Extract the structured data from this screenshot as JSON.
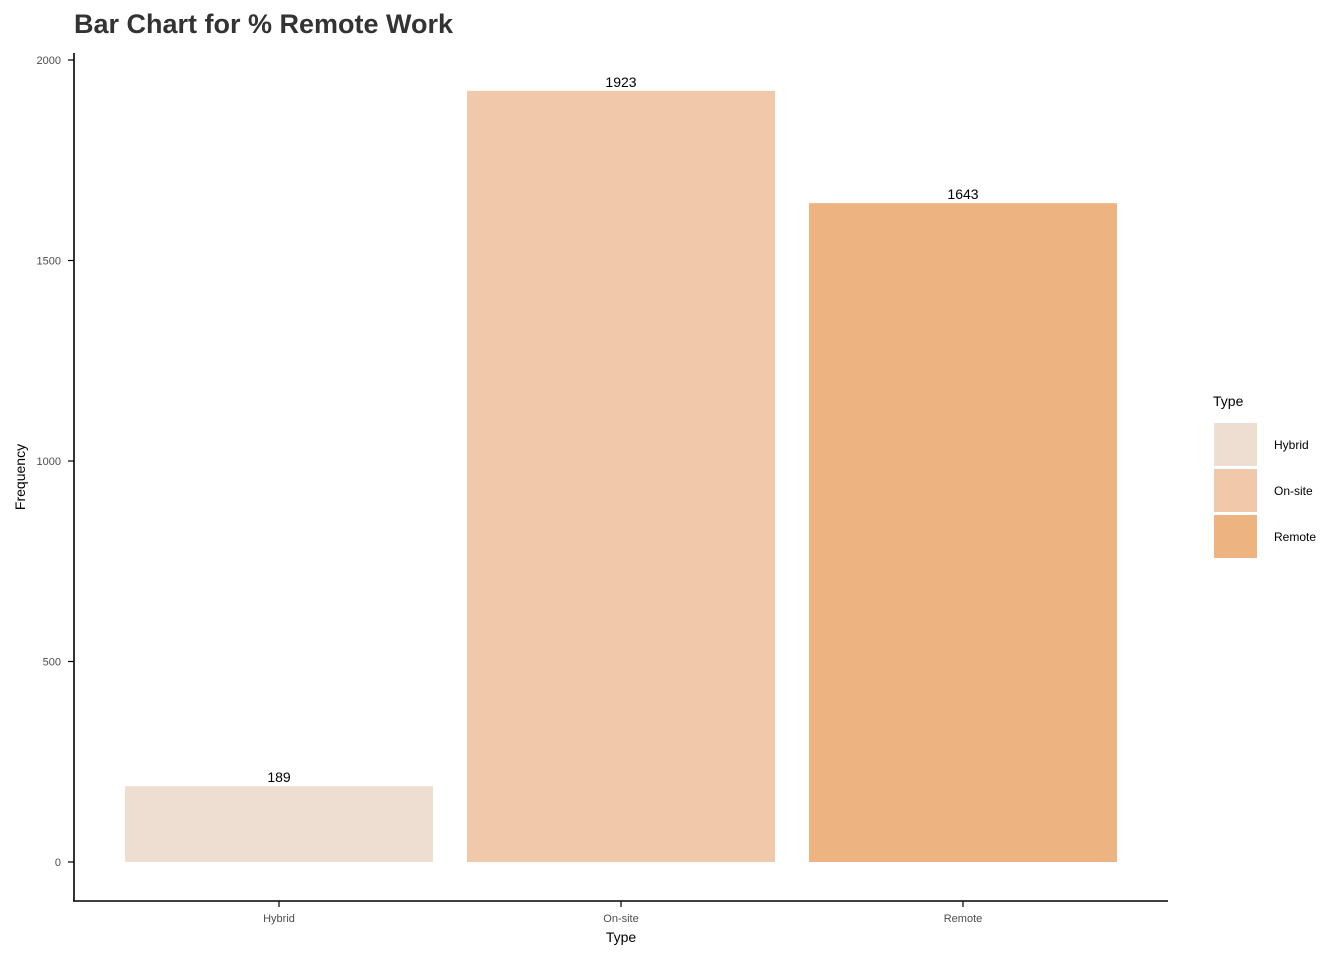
{
  "chart_data": {
    "type": "bar",
    "title": "Bar Chart for  % Remote Work",
    "xlabel": "Type",
    "ylabel": "Frequency",
    "categories": [
      "Hybrid",
      "On-site",
      "Remote"
    ],
    "values": [
      189,
      1923,
      1643
    ],
    "data_labels": [
      "189",
      "1923",
      "1643"
    ],
    "colors": [
      "#EEDED1",
      "#F0C8AA",
      "#EDB381"
    ],
    "ylim": [
      0,
      2000
    ],
    "yticks": [
      0,
      500,
      1000,
      1500,
      2000
    ],
    "grid": false,
    "legend": {
      "title": "Type",
      "placement": "right",
      "entries": [
        "Hybrid",
        "On-site",
        "Remote"
      ]
    }
  }
}
